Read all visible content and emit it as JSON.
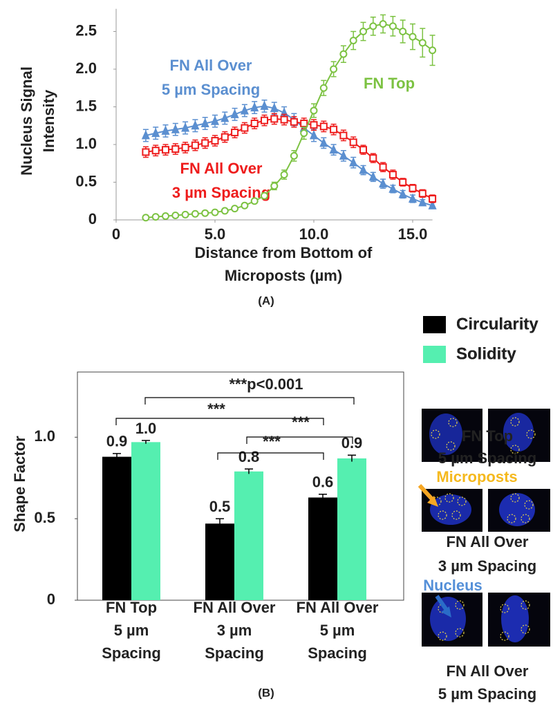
{
  "chart_data": [
    {
      "type": "line",
      "y_label": [
        "Nucleus Signal",
        "Intensity"
      ],
      "x_label": [
        "Distance from Bottom of",
        "Microposts (µm)"
      ],
      "caption": "(A)",
      "x": [
        1.5,
        2,
        2.5,
        3,
        3.5,
        4,
        4.5,
        5,
        5.5,
        6,
        6.5,
        7,
        7.5,
        8,
        8.5,
        9,
        9.5,
        10,
        10.5,
        11,
        11.5,
        12,
        12.5,
        13,
        13.5,
        14,
        14.5,
        15,
        15.5,
        16
      ],
      "xlim": [
        0,
        16
      ],
      "xticks": [
        0,
        {
          "value": 5,
          "label": "5.0"
        },
        {
          "value": 10,
          "label": "10.0"
        },
        {
          "value": 15,
          "label": "15.0"
        }
      ],
      "ylim": [
        0,
        2.8
      ],
      "yticks": [
        0,
        0.5,
        {
          "value": 1,
          "label": "1.0"
        },
        1.5,
        {
          "value": 2,
          "label": "2.0"
        },
        2.5
      ],
      "series": [
        {
          "name": [
            "FN All Over",
            "5 µm Spacing"
          ],
          "color": "#5b8fd0",
          "marker": "triangle",
          "values": [
            1.12,
            1.15,
            1.18,
            1.2,
            1.22,
            1.25,
            1.28,
            1.31,
            1.35,
            1.4,
            1.45,
            1.49,
            1.51,
            1.48,
            1.42,
            1.33,
            1.22,
            1.12,
            1.02,
            0.93,
            0.85,
            0.76,
            0.66,
            0.57,
            0.48,
            0.41,
            0.34,
            0.28,
            0.23,
            0.19
          ],
          "errors": [
            0.08,
            0.08,
            0.08,
            0.08,
            0.08,
            0.08,
            0.08,
            0.08,
            0.08,
            0.08,
            0.08,
            0.08,
            0.08,
            0.08,
            0.08,
            0.08,
            0.08,
            0.08,
            0.07,
            0.07,
            0.07,
            0.07,
            0.06,
            0.06,
            0.06,
            0.05,
            0.05,
            0.05,
            0.04,
            0.04
          ]
        },
        {
          "name": [
            "FN All Over",
            "3 µm Spacing"
          ],
          "color": "#ee1c1c",
          "marker": "square",
          "values": [
            0.9,
            0.92,
            0.93,
            0.94,
            0.96,
            0.99,
            1.02,
            1.05,
            1.1,
            1.16,
            1.22,
            1.28,
            1.32,
            1.34,
            1.33,
            1.3,
            1.28,
            1.26,
            1.24,
            1.2,
            1.12,
            1.03,
            0.93,
            0.82,
            0.7,
            0.6,
            0.5,
            0.42,
            0.35,
            0.28
          ],
          "errors": [
            0.07,
            0.07,
            0.07,
            0.07,
            0.07,
            0.07,
            0.07,
            0.07,
            0.07,
            0.07,
            0.07,
            0.07,
            0.07,
            0.07,
            0.07,
            0.07,
            0.07,
            0.07,
            0.07,
            0.07,
            0.07,
            0.07,
            0.06,
            0.06,
            0.06,
            0.06,
            0.05,
            0.05,
            0.05,
            0.05
          ]
        },
        {
          "name": [
            "FN Top"
          ],
          "color": "#7cc242",
          "marker": "circle",
          "values": [
            0.03,
            0.04,
            0.05,
            0.06,
            0.07,
            0.08,
            0.09,
            0.1,
            0.12,
            0.15,
            0.19,
            0.25,
            0.32,
            0.45,
            0.6,
            0.85,
            1.15,
            1.45,
            1.75,
            2.0,
            2.2,
            2.38,
            2.5,
            2.57,
            2.6,
            2.57,
            2.5,
            2.43,
            2.35,
            2.25
          ],
          "errors": [
            0.01,
            0.01,
            0.01,
            0.01,
            0.01,
            0.01,
            0.02,
            0.02,
            0.02,
            0.02,
            0.03,
            0.03,
            0.04,
            0.05,
            0.06,
            0.07,
            0.08,
            0.09,
            0.1,
            0.1,
            0.11,
            0.12,
            0.12,
            0.12,
            0.12,
            0.13,
            0.15,
            0.17,
            0.19,
            0.2
          ]
        }
      ]
    },
    {
      "type": "bar",
      "y_label": "Shape Factor",
      "caption": "(B)",
      "categories": [
        [
          "FN Top",
          "5 µm",
          "Spacing"
        ],
        [
          "FN All Over",
          "3 µm",
          "Spacing"
        ],
        [
          "FN All Over",
          "5 µm",
          "Spacing"
        ]
      ],
      "ylim": [
        0,
        1.4
      ],
      "yticks": [
        0,
        0.5,
        {
          "value": 1,
          "label": "1.0"
        }
      ],
      "legend": "outside-top-right",
      "series": [
        {
          "name": "Circularity",
          "color": "#000000",
          "values": [
            0.88,
            0.47,
            0.63
          ],
          "errors": [
            0.02,
            0.03,
            0.02
          ],
          "value_labels": [
            "0.9",
            "0.5",
            "0.6"
          ]
        },
        {
          "name": "Solidity",
          "color": "#55efb0",
          "values": [
            0.97,
            0.79,
            0.87
          ],
          "errors": [
            0.01,
            0.015,
            0.02
          ],
          "value_labels": [
            "1.0",
            "0.8",
            "0.9"
          ]
        }
      ],
      "significance": [
        "***p<0.001",
        "***",
        "***",
        "***"
      ]
    }
  ],
  "image_panel": {
    "rows": [
      [
        "FN Top",
        "5 µm Spacing"
      ],
      [
        "FN All Over",
        "3 µm Spacing"
      ],
      [
        "FN All Over",
        "5 µm Spacing"
      ]
    ],
    "callouts": [
      "Microposts",
      "Nucleus"
    ]
  }
}
